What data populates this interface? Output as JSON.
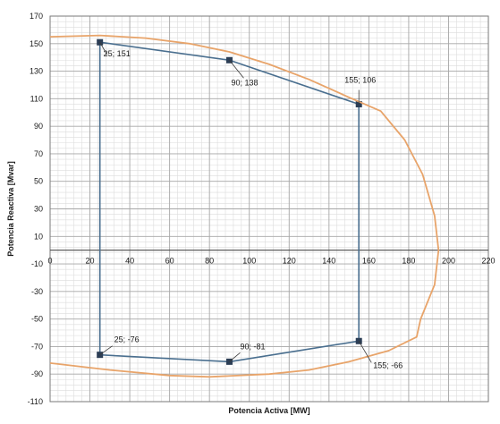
{
  "chart_data": {
    "type": "line",
    "xlabel": "Potencia Activa [MW]",
    "ylabel": "Potencia Reactiva [Mvar]",
    "xlim": [
      0,
      220
    ],
    "ylim": [
      -110,
      170
    ],
    "x_ticks": [
      0,
      20,
      40,
      60,
      80,
      100,
      120,
      140,
      160,
      180,
      200,
      220
    ],
    "y_ticks": [
      -110,
      -90,
      -70,
      -50,
      -30,
      -10,
      10,
      30,
      50,
      70,
      90,
      110,
      130,
      150,
      170
    ],
    "grid": true,
    "series": [
      {
        "points": [
          [
            25,
            151
          ],
          [
            90,
            138
          ],
          [
            155,
            106
          ],
          [
            155,
            -66
          ],
          [
            90,
            -81
          ],
          [
            25,
            -76
          ],
          [
            25,
            151
          ]
        ],
        "color": "#4a6f8f",
        "marker": "square"
      },
      {
        "points": [
          [
            0,
            155
          ],
          [
            25,
            156
          ],
          [
            48,
            154
          ],
          [
            70,
            150
          ],
          [
            90,
            144
          ],
          [
            110,
            135
          ],
          [
            130,
            124
          ],
          [
            150,
            111
          ],
          [
            166,
            101
          ],
          [
            178,
            80
          ],
          [
            187,
            55
          ],
          [
            193,
            25
          ],
          [
            195,
            0
          ],
          [
            193,
            -25
          ],
          [
            186,
            -50
          ],
          [
            184,
            -63
          ],
          [
            170,
            -73
          ],
          [
            150,
            -81
          ],
          [
            130,
            -87
          ],
          [
            110,
            -90
          ],
          [
            80,
            -92
          ],
          [
            60,
            -91
          ],
          [
            30,
            -87
          ],
          [
            0,
            -82
          ]
        ],
        "color": "#e8a46a",
        "marker": "none"
      }
    ],
    "annotations": [
      {
        "text": "25; 151",
        "x": 25,
        "y": 151
      },
      {
        "text": "90; 138",
        "x": 90,
        "y": 138
      },
      {
        "text": "155; 106",
        "x": 155,
        "y": 106
      },
      {
        "text": "25; -76",
        "x": 25,
        "y": -76
      },
      {
        "text": "90; -81",
        "x": 90,
        "y": -81
      },
      {
        "text": "155; -66",
        "x": 155,
        "y": -66
      }
    ]
  }
}
